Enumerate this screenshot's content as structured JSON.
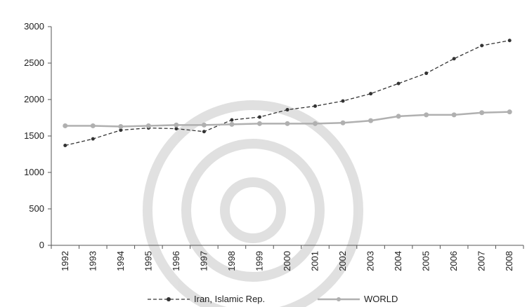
{
  "chart_data": {
    "type": "line",
    "title": "",
    "xlabel": "",
    "ylabel": "",
    "x": [
      "1992",
      "1993",
      "1994",
      "1995",
      "1996",
      "1997",
      "1998",
      "1999",
      "2000",
      "2001",
      "2002",
      "2003",
      "2004",
      "2005",
      "2006",
      "2007",
      "2008"
    ],
    "ylim": [
      0,
      3000
    ],
    "yticks": [
      0,
      500,
      1000,
      1500,
      2000,
      2500,
      3000
    ],
    "grid": false,
    "legend_position": "bottom",
    "series": [
      {
        "name": "Iran, Islamic Rep.",
        "style": "dashed",
        "color": "#333333",
        "values": [
          1370,
          1460,
          1580,
          1610,
          1600,
          1560,
          1720,
          1760,
          1860,
          1910,
          1980,
          2080,
          2220,
          2360,
          2560,
          2740,
          2810
        ]
      },
      {
        "name": "WORLD",
        "style": "solid",
        "color": "#b0b0b0",
        "values": [
          1640,
          1640,
          1630,
          1640,
          1650,
          1650,
          1660,
          1670,
          1670,
          1670,
          1680,
          1710,
          1770,
          1790,
          1790,
          1820,
          1830
        ]
      }
    ]
  }
}
